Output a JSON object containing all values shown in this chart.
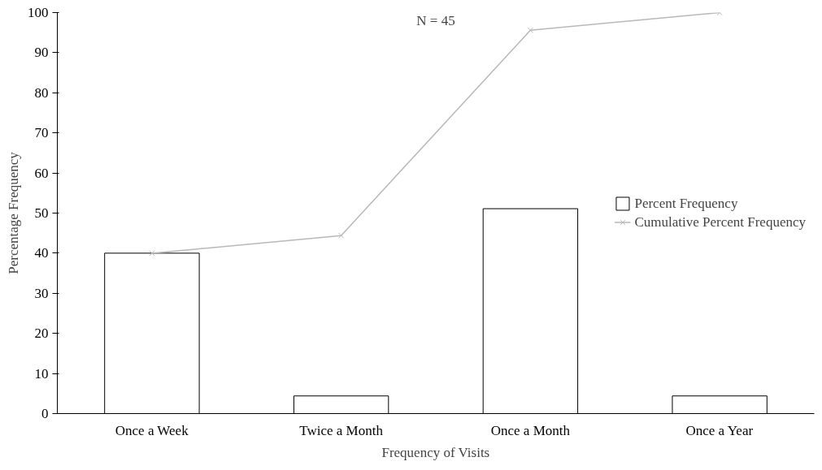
{
  "chart_data": {
    "type": "bar",
    "xlabel": "Frequency of Visits",
    "ylabel": "Percentage Frequency",
    "annotations": [
      "N = 45"
    ],
    "categories": [
      "Once a Week",
      "Twice a Month",
      "Once a Month",
      "Once a Year"
    ],
    "series": [
      {
        "name": "Percent Frequency",
        "color": "#ffffff",
        "values": [
          40,
          4.4,
          51.1,
          4.4
        ]
      },
      {
        "name": "Cumulative Percent Frequency",
        "type": "line",
        "color": "#b8b8b8",
        "marker": "cross",
        "values": [
          40,
          44.4,
          95.6,
          100
        ]
      }
    ],
    "ylim": [
      0,
      100
    ],
    "yticks": [
      0,
      10,
      20,
      30,
      40,
      50,
      60,
      70,
      80,
      90,
      100
    ],
    "grid": false,
    "legend": "right"
  }
}
